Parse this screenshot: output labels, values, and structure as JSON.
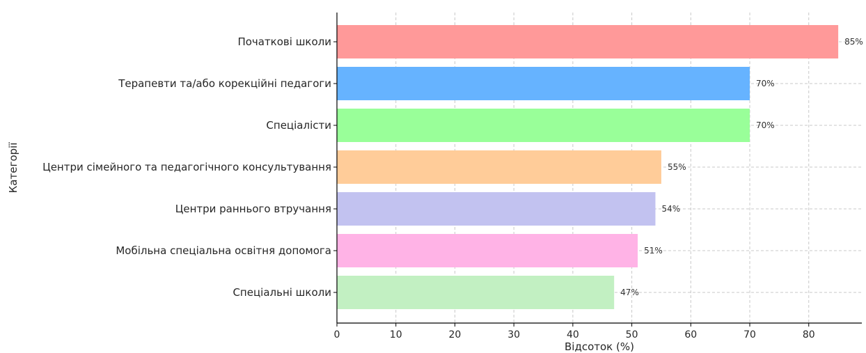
{
  "chart_data": {
    "type": "bar",
    "orientation": "horizontal",
    "categories": [
      "Початкові школи",
      "Терапевти та/або корекційні педагоги",
      "Спеціалісти",
      "Центри сімейного та педагогічного консультування",
      "Центри раннього втручання",
      "Мобільна спеціальна освітня допомога",
      "Спеціальні школи"
    ],
    "values": [
      85,
      70,
      70,
      55,
      54,
      51,
      47
    ],
    "value_labels": [
      "85%",
      "70%",
      "70%",
      "55%",
      "54%",
      "51%",
      "47%"
    ],
    "colors": [
      "#ff9999",
      "#66b3ff",
      "#99ff99",
      "#ffcc99",
      "#c2c2f0",
      "#ffb3e6",
      "#c2f0c2"
    ],
    "xlabel": "Відсоток (%)",
    "ylabel": "Категорії",
    "xlim": [
      0,
      89
    ],
    "xticks": [
      0,
      10,
      20,
      30,
      40,
      50,
      60,
      70,
      80
    ],
    "grid": true
  }
}
